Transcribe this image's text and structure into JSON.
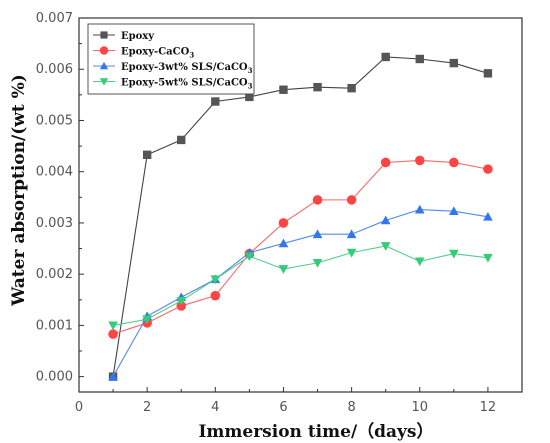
{
  "chart_data": {
    "type": "line",
    "xlabel": "Immersion time/（days）",
    "ylabel": "Water absorption/(wt %)",
    "xlim": [
      0,
      13
    ],
    "ylim": [
      -0.0003,
      0.007
    ],
    "xticks": [
      0,
      2,
      4,
      6,
      8,
      10,
      12
    ],
    "yticks": [
      0.0,
      0.001,
      0.002,
      0.003,
      0.004,
      0.005,
      0.006,
      0.007
    ],
    "ytick_labels": [
      "0.000",
      "0.001",
      "0.002",
      "0.003",
      "0.004",
      "0.005",
      "0.006",
      "0.007"
    ],
    "grid": false,
    "legend_position": "top-left",
    "x": [
      1,
      2,
      3,
      4,
      5,
      6,
      7,
      8,
      9,
      10,
      11,
      12
    ],
    "series": [
      {
        "name": "Epoxy",
        "name_main": "Epoxy",
        "name_sub": "",
        "marker": "square",
        "color": "#555555",
        "line_color": "#444444",
        "values": [
          0.0,
          0.00433,
          0.00462,
          0.00537,
          0.00546,
          0.0056,
          0.00565,
          0.00563,
          0.00624,
          0.0062,
          0.00612,
          0.00592
        ]
      },
      {
        "name": "Epoxy-CaCO3",
        "name_main": "Epoxy-CaCO",
        "name_sub": "3",
        "marker": "circle",
        "color": "#ff4444",
        "line_color": "#ff6666",
        "values": [
          0.00083,
          0.00105,
          0.00138,
          0.00158,
          0.0024,
          0.003,
          0.00345,
          0.00345,
          0.00418,
          0.00422,
          0.00418,
          0.00405
        ]
      },
      {
        "name": "Epoxy-3wt% SLS/CaCO3",
        "name_main": "Epoxy-3wt% SLS/CaCO",
        "name_sub": "3",
        "marker": "triangle-up",
        "color": "#3377ee",
        "line_color": "#5588ee",
        "values": [
          0.0,
          0.00118,
          0.00155,
          0.0019,
          0.00242,
          0.0026,
          0.00278,
          0.00278,
          0.00305,
          0.00326,
          0.00323,
          0.00312
        ]
      },
      {
        "name": "Epoxy-5wt% SLS/CaCO3",
        "name_main": "Epoxy-5wt% SLS/CaCO",
        "name_sub": "3",
        "marker": "triangle-down",
        "color": "#33cc77",
        "line_color": "#55cc88",
        "values": [
          0.001,
          0.00112,
          0.00148,
          0.0019,
          0.00235,
          0.0021,
          0.00222,
          0.00242,
          0.00255,
          0.00225,
          0.0024,
          0.00232
        ]
      }
    ]
  }
}
